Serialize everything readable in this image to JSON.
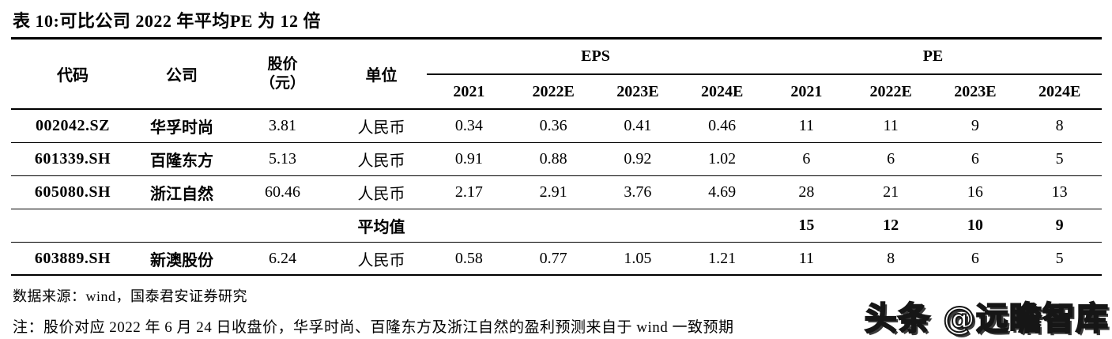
{
  "title": "表 10:可比公司 2022 年平均PE 为 12 倍",
  "table": {
    "headers": {
      "code": "代码",
      "company": "公司",
      "price_line1": "股价",
      "price_line2": "（元）",
      "unit": "单位",
      "eps_group": "EPS",
      "pe_group": "PE",
      "years": [
        "2021",
        "2022E",
        "2023E",
        "2024E"
      ]
    },
    "rows": [
      {
        "code": "002042.SZ",
        "company": "华孚时尚",
        "price": "3.81",
        "unit": "人民币",
        "eps": [
          "0.34",
          "0.36",
          "0.41",
          "0.46"
        ],
        "pe": [
          "11",
          "11",
          "9",
          "8"
        ]
      },
      {
        "code": "601339.SH",
        "company": "百隆东方",
        "price": "5.13",
        "unit": "人民币",
        "eps": [
          "0.91",
          "0.88",
          "0.92",
          "1.02"
        ],
        "pe": [
          "6",
          "6",
          "6",
          "5"
        ]
      },
      {
        "code": "605080.SH",
        "company": "浙江自然",
        "price": "60.46",
        "unit": "人民币",
        "eps": [
          "2.17",
          "2.91",
          "3.76",
          "4.69"
        ],
        "pe": [
          "28",
          "21",
          "16",
          "13"
        ]
      }
    ],
    "average_row": {
      "label": "平均值",
      "pe": [
        "15",
        "12",
        "10",
        "9"
      ]
    },
    "extra_row": {
      "code": "603889.SH",
      "company": "新澳股份",
      "price": "6.24",
      "unit": "人民币",
      "eps": [
        "0.58",
        "0.77",
        "1.05",
        "1.21"
      ],
      "pe": [
        "11",
        "8",
        "6",
        "5"
      ]
    }
  },
  "source": "数据来源：wind，国泰君安证券研究",
  "note": "注：股价对应 2022 年 6 月 24 日收盘价，华孚时尚、百隆东方及浙江自然的盈利预测来自于 wind 一致预期",
  "watermark": "头条 @远瞻智库"
}
